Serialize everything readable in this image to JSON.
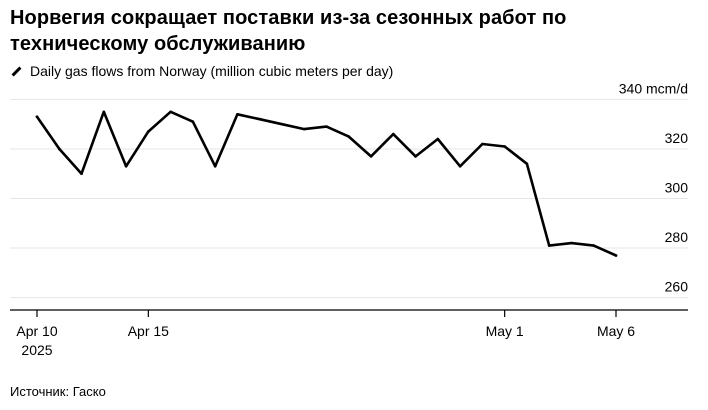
{
  "header": {
    "title": "Норвегия сокращает поставки из-за сезонных работ по техническому обслуживанию"
  },
  "legend": {
    "label": "Daily gas flows from Norway (million cubic meters per day)"
  },
  "footer": {
    "source": "Источник: Гаско"
  },
  "colors": {
    "line": "#000000",
    "grid": "#e6e6e6",
    "axis": "#000000"
  },
  "chart_data": {
    "type": "line",
    "series": [
      {
        "name": "Daily gas flows from Norway (million cubic meters per day)",
        "points": [
          {
            "date": "2025-04-10",
            "value": 333
          },
          {
            "date": "2025-04-11",
            "value": 320
          },
          {
            "date": "2025-04-12",
            "value": 310
          },
          {
            "date": "2025-04-13",
            "value": 335
          },
          {
            "date": "2025-04-14",
            "value": 313
          },
          {
            "date": "2025-04-15",
            "value": 327
          },
          {
            "date": "2025-04-16",
            "value": 335
          },
          {
            "date": "2025-04-17",
            "value": 331
          },
          {
            "date": "2025-04-18",
            "value": 313
          },
          {
            "date": "2025-04-19",
            "value": 334
          },
          {
            "date": "2025-04-20",
            "value": 332
          },
          {
            "date": "2025-04-21",
            "value": 330
          },
          {
            "date": "2025-04-22",
            "value": 328
          },
          {
            "date": "2025-04-23",
            "value": 329
          },
          {
            "date": "2025-04-24",
            "value": 325
          },
          {
            "date": "2025-04-25",
            "value": 317
          },
          {
            "date": "2025-04-26",
            "value": 326
          },
          {
            "date": "2025-04-27",
            "value": 317
          },
          {
            "date": "2025-04-28",
            "value": 324
          },
          {
            "date": "2025-04-29",
            "value": 313
          },
          {
            "date": "2025-04-30",
            "value": 322
          },
          {
            "date": "2025-05-01",
            "value": 321
          },
          {
            "date": "2025-05-02",
            "value": 314
          },
          {
            "date": "2025-05-03",
            "value": 281
          },
          {
            "date": "2025-05-04",
            "value": 282
          },
          {
            "date": "2025-05-05",
            "value": 281
          },
          {
            "date": "2025-05-06",
            "value": 277
          }
        ]
      }
    ],
    "y_axis": {
      "range": [
        255,
        345
      ],
      "ticks": [
        {
          "value": 340,
          "label": "340 mcm/d"
        },
        {
          "value": 320,
          "label": "320"
        },
        {
          "value": 300,
          "label": "300"
        },
        {
          "value": 280,
          "label": "280"
        },
        {
          "value": 260,
          "label": "260"
        }
      ],
      "position": "right"
    },
    "x_axis": {
      "range": [
        "2025-04-10",
        "2025-05-06"
      ],
      "ticks": [
        {
          "date": "2025-04-10",
          "label": "Apr 10",
          "sublabel": "2025"
        },
        {
          "date": "2025-04-15",
          "label": "Apr 15",
          "sublabel": ""
        },
        {
          "date": "2025-05-01",
          "label": "May 1",
          "sublabel": ""
        },
        {
          "date": "2025-05-06",
          "label": "May 6",
          "sublabel": ""
        }
      ]
    },
    "grid": true,
    "legend_position": "top-left"
  }
}
